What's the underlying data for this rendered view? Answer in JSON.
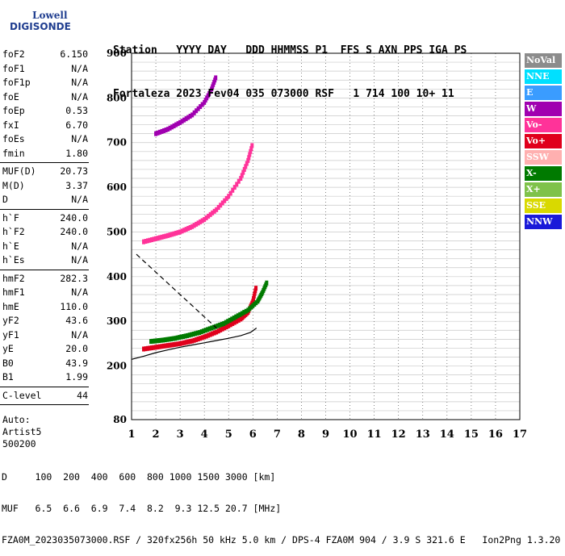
{
  "logo": {
    "line1": "Lowell",
    "line2": "DIGISONDE"
  },
  "header": {
    "labels": "Station   YYYY DAY   DDD HHMMSS P1  FFS S AXN PPS IGA PS",
    "values": "Fortaleza 2023 Fev04 035 073000 RSF   1 714 100 10+ 11"
  },
  "params": {
    "group1": [
      {
        "label": "foF2",
        "value": "6.150"
      },
      {
        "label": "foF1",
        "value": "N/A"
      },
      {
        "label": "foF1p",
        "value": "N/A"
      },
      {
        "label": "foE",
        "value": "N/A"
      },
      {
        "label": "foEp",
        "value": "0.53"
      },
      {
        "label": "fxI",
        "value": "6.70"
      },
      {
        "label": "foEs",
        "value": "N/A"
      },
      {
        "label": "fmin",
        "value": "1.80"
      }
    ],
    "group2": [
      {
        "label": "MUF(D)",
        "value": "20.73"
      },
      {
        "label": "M(D)",
        "value": "3.37"
      },
      {
        "label": "D",
        "value": "N/A"
      }
    ],
    "group3": [
      {
        "label": "h`F",
        "value": "240.0"
      },
      {
        "label": "h`F2",
        "value": "240.0"
      },
      {
        "label": "h`E",
        "value": "N/A"
      },
      {
        "label": "h`Es",
        "value": "N/A"
      }
    ],
    "group4": [
      {
        "label": "hmF2",
        "value": "282.3"
      },
      {
        "label": "hmF1",
        "value": "N/A"
      },
      {
        "label": "hmE",
        "value": "110.0"
      },
      {
        "label": "yF2",
        "value": "43.6"
      },
      {
        "label": "yF1",
        "value": "N/A"
      },
      {
        "label": "yE",
        "value": "20.0"
      },
      {
        "label": "B0",
        "value": "43.9"
      },
      {
        "label": "B1",
        "value": "1.99"
      }
    ],
    "group5": [
      {
        "label": "C-level",
        "value": "44"
      }
    ],
    "auto": {
      "line1": "Auto:",
      "line2": "Artist5",
      "line3": "500200"
    }
  },
  "legend": [
    {
      "label": "NoVal",
      "color": "#8c8c8c"
    },
    {
      "label": "NNE",
      "color": "#00e0ff"
    },
    {
      "label": "E",
      "color": "#3a9cff"
    },
    {
      "label": "W",
      "color": "#a000b0"
    },
    {
      "label": "Vo-",
      "color": "#ff3399"
    },
    {
      "label": "Vo+",
      "color": "#e0001c"
    },
    {
      "label": "SSW",
      "color": "#ffb0b0"
    },
    {
      "label": "X-",
      "color": "#007a00"
    },
    {
      "label": "X+",
      "color": "#7fc24a"
    },
    {
      "label": "SSE",
      "color": "#d9d900"
    },
    {
      "label": "NNW",
      "color": "#1a1ad9"
    }
  ],
  "footer": {
    "line1": "D     100  200  400  600  800 1000 1500 3000 [km]",
    "line2": "MUF   6.5  6.6  6.9  7.4  8.2  9.3 12.5 20.7 [MHz]",
    "line3": "FZA0M_2023035073000.RSF / 320fx256h 50 kHz 5.0 km / DPS-4 FZA0M 904 / 3.9 S 321.6 E   Ion2Png 1.3.20"
  },
  "chart_data": {
    "type": "scatter",
    "title": "",
    "xlabel": "",
    "ylabel": "",
    "xlim": [
      1,
      17
    ],
    "ylim": [
      80,
      900
    ],
    "x_ticks": [
      1,
      2,
      3,
      4,
      5,
      6,
      7,
      8,
      9,
      10,
      11,
      12,
      13,
      14,
      15,
      16,
      17
    ],
    "y_ticks": [
      80,
      200,
      300,
      400,
      500,
      600,
      700,
      800,
      900
    ],
    "grid": true,
    "series": [
      {
        "name": "Vo+",
        "color": "#e0001c",
        "x": [
          1.5,
          2.0,
          2.5,
          3.0,
          3.5,
          4.0,
          4.5,
          5.0,
          5.5,
          5.8,
          6.0,
          6.15
        ],
        "y": [
          238,
          242,
          246,
          250,
          256,
          265,
          276,
          290,
          305,
          320,
          345,
          380
        ]
      },
      {
        "name": "X-",
        "color": "#007a00",
        "x": [
          1.8,
          2.3,
          2.8,
          3.3,
          3.8,
          4.3,
          4.8,
          5.3,
          5.8,
          6.2,
          6.4,
          6.6
        ],
        "y": [
          255,
          258,
          262,
          268,
          275,
          285,
          295,
          310,
          325,
          345,
          365,
          390
        ]
      },
      {
        "name": "Vo-",
        "color": "#ff3399",
        "x": [
          1.5,
          2.0,
          2.5,
          3.0,
          3.5,
          4.0,
          4.5,
          5.0,
          5.5,
          5.8,
          6.0
        ],
        "y": [
          478,
          485,
          492,
          500,
          512,
          528,
          550,
          580,
          620,
          660,
          700
        ]
      },
      {
        "name": "W",
        "color": "#a000b0",
        "x": [
          2.0,
          2.5,
          3.0,
          3.5,
          4.0,
          4.3,
          4.5
        ],
        "y": [
          720,
          730,
          745,
          762,
          790,
          820,
          850
        ]
      }
    ],
    "profile_curves": [
      {
        "style": "solid",
        "x": [
          1.0,
          1.5,
          2.0,
          2.5,
          3.0,
          3.5,
          4.0,
          4.5,
          5.0,
          5.5,
          5.9,
          6.15
        ],
        "y": [
          215,
          222,
          230,
          236,
          242,
          247,
          252,
          257,
          262,
          268,
          275,
          285
        ]
      },
      {
        "style": "dashed",
        "x": [
          1.2,
          1.5,
          2.0,
          2.5,
          3.0,
          3.5,
          4.0,
          4.5
        ],
        "y": [
          450,
          435,
          410,
          385,
          360,
          335,
          310,
          285
        ]
      }
    ]
  }
}
